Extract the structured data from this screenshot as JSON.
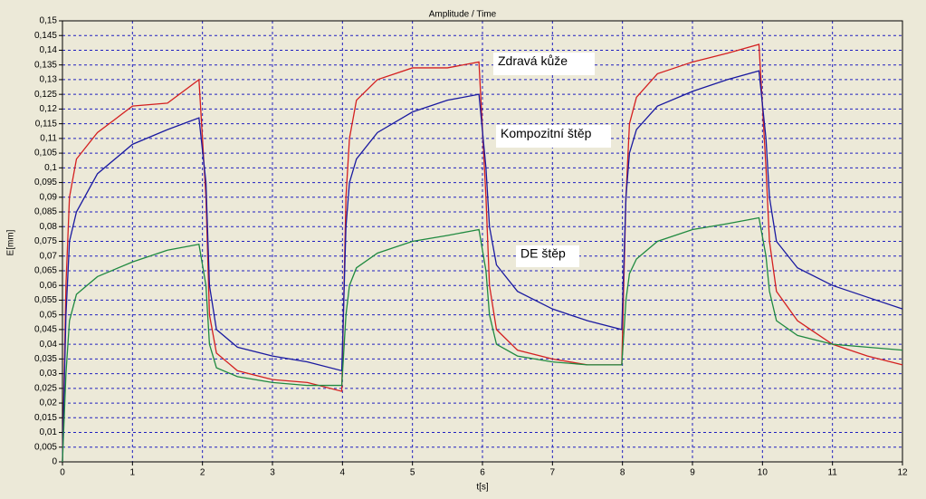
{
  "chart_data": {
    "type": "line",
    "title": "Amplitude / Time",
    "xlabel": "t[s]",
    "ylabel": "E[mm]",
    "x": [
      0,
      0.05,
      0.1,
      0.2,
      0.5,
      1,
      1.5,
      1.95,
      2.05,
      2.1,
      2.2,
      2.5,
      3,
      3.5,
      3.99,
      4.05,
      4.1,
      4.2,
      4.5,
      5,
      5.5,
      5.95,
      6.05,
      6.1,
      6.2,
      6.5,
      7,
      7.5,
      7.99,
      8.05,
      8.1,
      8.2,
      8.5,
      9,
      9.5,
      9.95,
      10.05,
      10.1,
      10.2,
      10.5,
      11,
      11.5,
      12
    ],
    "series": [
      {
        "name": "Zdravá kůže",
        "color": "#d42020",
        "values": [
          0,
          0.06,
          0.09,
          0.103,
          0.112,
          0.121,
          0.122,
          0.13,
          0.09,
          0.05,
          0.037,
          0.031,
          0.028,
          0.027,
          0.024,
          0.09,
          0.11,
          0.123,
          0.13,
          0.134,
          0.134,
          0.136,
          0.09,
          0.06,
          0.045,
          0.038,
          0.035,
          0.033,
          0.033,
          0.09,
          0.115,
          0.124,
          0.132,
          0.136,
          0.139,
          0.142,
          0.1,
          0.075,
          0.058,
          0.048,
          0.04,
          0.036,
          0.033
        ]
      },
      {
        "name": "Kompozitní štěp",
        "color": "#1a1aa0",
        "values": [
          0,
          0.05,
          0.075,
          0.085,
          0.098,
          0.108,
          0.113,
          0.117,
          0.095,
          0.06,
          0.045,
          0.039,
          0.036,
          0.034,
          0.031,
          0.08,
          0.095,
          0.103,
          0.112,
          0.119,
          0.123,
          0.125,
          0.1,
          0.08,
          0.067,
          0.058,
          0.052,
          0.048,
          0.045,
          0.09,
          0.105,
          0.113,
          0.121,
          0.126,
          0.13,
          0.133,
          0.11,
          0.09,
          0.075,
          0.066,
          0.06,
          0.056,
          0.052
        ]
      },
      {
        "name": "DE štěp",
        "color": "#208a40",
        "values": [
          0,
          0.03,
          0.048,
          0.057,
          0.063,
          0.068,
          0.072,
          0.074,
          0.06,
          0.04,
          0.032,
          0.029,
          0.027,
          0.026,
          0.026,
          0.05,
          0.06,
          0.066,
          0.071,
          0.075,
          0.077,
          0.079,
          0.065,
          0.05,
          0.04,
          0.036,
          0.034,
          0.033,
          0.033,
          0.055,
          0.064,
          0.069,
          0.075,
          0.079,
          0.081,
          0.083,
          0.07,
          0.058,
          0.048,
          0.043,
          0.04,
          0.039,
          0.038
        ]
      }
    ],
    "xlim": [
      0,
      12
    ],
    "xticks": [
      0,
      1,
      2,
      3,
      4,
      5,
      6,
      7,
      8,
      9,
      10,
      11,
      12
    ],
    "ylim": [
      0,
      0.15
    ],
    "yticks": [
      0,
      {
        "value": 0.005,
        "label": "0,005"
      },
      {
        "value": 0.01,
        "label": "0,01"
      },
      {
        "value": 0.015,
        "label": "0,015"
      },
      {
        "value": 0.02,
        "label": "0,02"
      },
      {
        "value": 0.025,
        "label": "0,025"
      },
      {
        "value": 0.03,
        "label": "0,03"
      },
      {
        "value": 0.035,
        "label": "0,035"
      },
      {
        "value": 0.04,
        "label": "0,04"
      },
      {
        "value": 0.045,
        "label": "0,045"
      },
      {
        "value": 0.05,
        "label": "0,05"
      },
      {
        "value": 0.055,
        "label": "0,055"
      },
      {
        "value": 0.06,
        "label": "0,06"
      },
      {
        "value": 0.065,
        "label": "0,065"
      },
      {
        "value": 0.07,
        "label": "0,07"
      },
      {
        "value": 0.075,
        "label": "0,075"
      },
      {
        "value": 0.08,
        "label": "0,08"
      },
      {
        "value": 0.085,
        "label": "0,085"
      },
      {
        "value": 0.09,
        "label": "0,09"
      },
      {
        "value": 0.095,
        "label": "0,095"
      },
      {
        "value": 0.1,
        "label": "0,1"
      },
      {
        "value": 0.105,
        "label": "0,105"
      },
      {
        "value": 0.11,
        "label": "0,11"
      },
      {
        "value": 0.115,
        "label": "0,115"
      },
      {
        "value": 0.12,
        "label": "0,12"
      },
      {
        "value": 0.125,
        "label": "0,125"
      },
      {
        "value": 0.13,
        "label": "0,13"
      },
      {
        "value": 0.135,
        "label": "0,135"
      },
      {
        "value": 0.14,
        "label": "0,14"
      },
      {
        "value": 0.145,
        "label": "0,145"
      },
      {
        "value": 0.15,
        "label": "0,15"
      }
    ],
    "grid": true
  }
}
